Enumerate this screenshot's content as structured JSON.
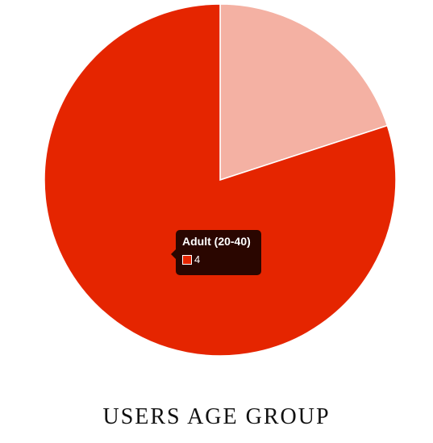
{
  "chart_data": {
    "type": "pie",
    "title": "USERS AGE GROUP",
    "series": [
      {
        "values": [
          1,
          4
        ]
      }
    ],
    "slice_colors": [
      "#f4b1a3",
      "#e52500"
    ],
    "tooltip": {
      "label": "Adult (20-40)",
      "value": "4",
      "swatch_color": "#e52500",
      "background": "#2a0600"
    }
  }
}
